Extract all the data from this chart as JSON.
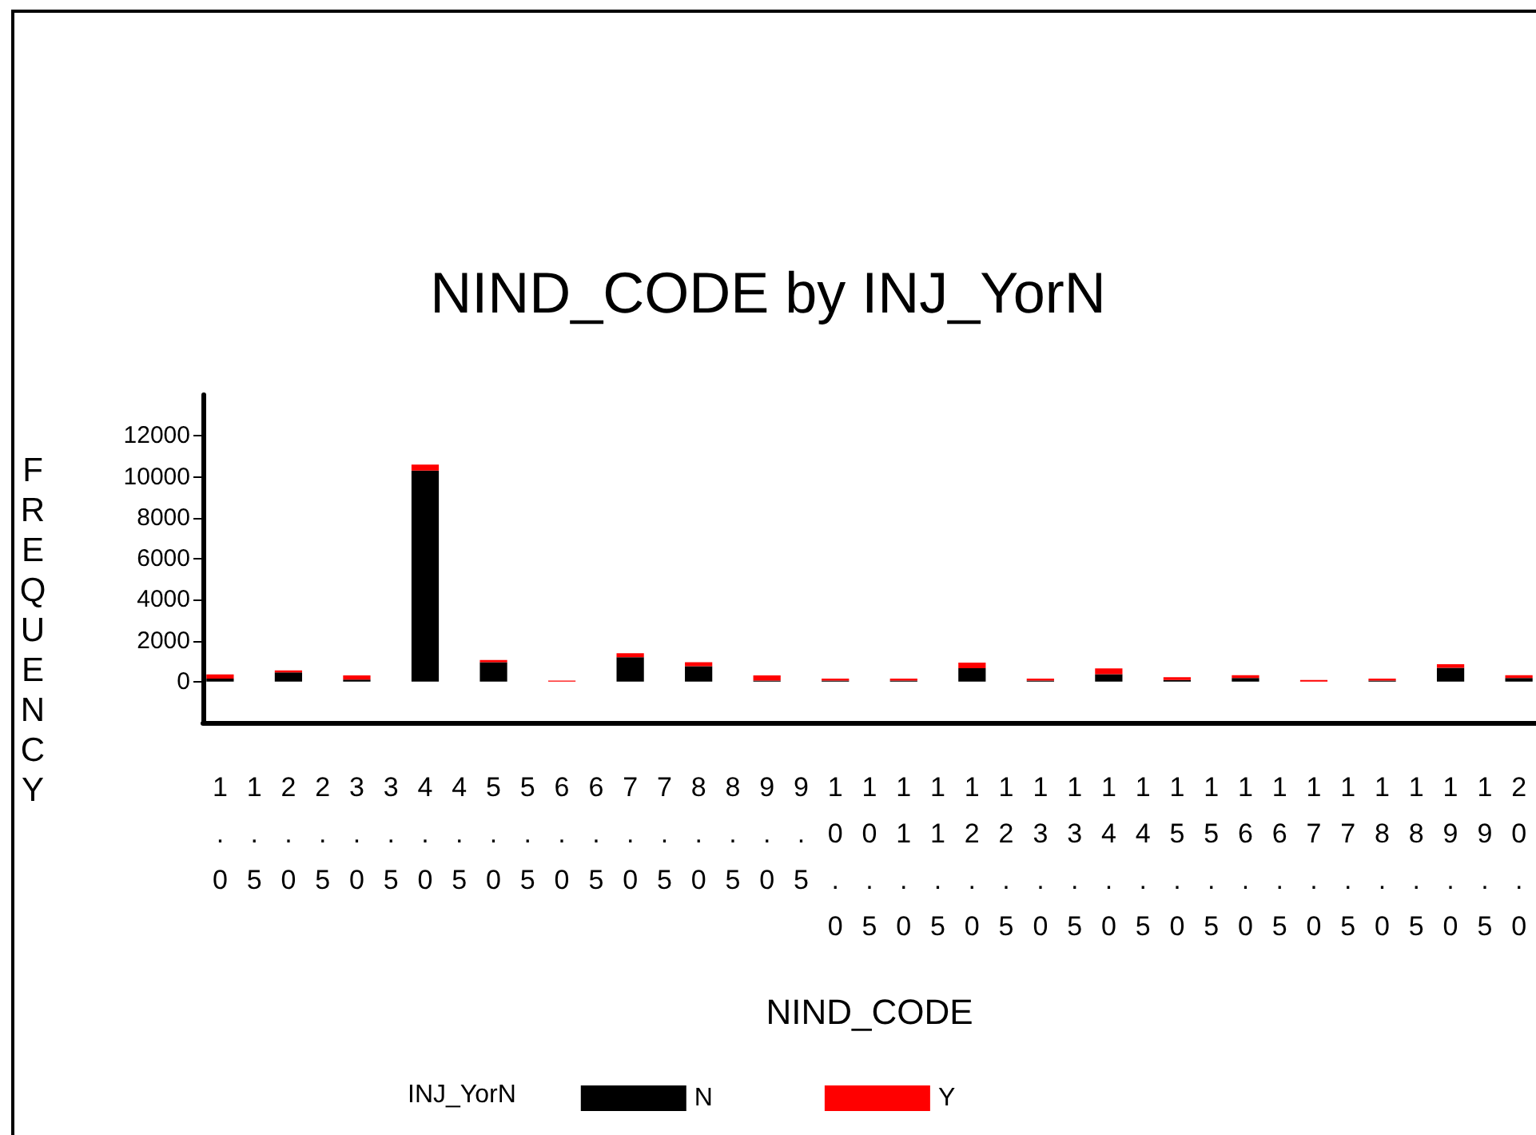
{
  "chart_data": {
    "type": "bar",
    "title": "NIND_CODE by INJ_YorN",
    "xlabel": "NIND_CODE",
    "ylabel": "FREQUENCY",
    "legend_title": "INJ_YorN",
    "categories": [
      "1.0",
      "1.5",
      "2.0",
      "2.5",
      "3.0",
      "3.5",
      "4.0",
      "4.5",
      "5.0",
      "5.5",
      "6.0",
      "6.5",
      "7.0",
      "7.5",
      "8.0",
      "8.5",
      "9.0",
      "9.5",
      "10.0",
      "10.5",
      "11.0",
      "11.5",
      "12.0",
      "12.5",
      "13.0",
      "13.5",
      "14.0",
      "14.5",
      "15.0",
      "15.5",
      "16.0",
      "16.5",
      "17.0",
      "17.5",
      "18.0",
      "18.5",
      "19.0",
      "19.5",
      "20.0"
    ],
    "stacked": true,
    "series": [
      {
        "name": "N",
        "color": "#000000",
        "values": [
          150,
          0,
          450,
          0,
          100,
          0,
          10300,
          0,
          950,
          0,
          0,
          0,
          1190,
          0,
          750,
          0,
          50,
          0,
          50,
          0,
          50,
          0,
          650,
          0,
          50,
          0,
          360,
          0,
          80,
          0,
          180,
          0,
          0,
          0,
          50,
          0,
          670,
          0,
          180
        ]
      },
      {
        "name": "Y",
        "color": "#ff0000",
        "values": [
          200,
          0,
          100,
          0,
          200,
          0,
          300,
          0,
          100,
          0,
          50,
          0,
          200,
          0,
          200,
          0,
          250,
          0,
          100,
          0,
          100,
          0,
          280,
          0,
          100,
          0,
          280,
          0,
          130,
          0,
          130,
          0,
          80,
          0,
          100,
          0,
          180,
          0,
          130
        ]
      }
    ],
    "ylim": [
      -2000,
      14000
    ],
    "yticks": [
      0,
      2000,
      4000,
      6000,
      8000,
      10000,
      12000
    ],
    "grid": false,
    "legend": "bottom"
  }
}
